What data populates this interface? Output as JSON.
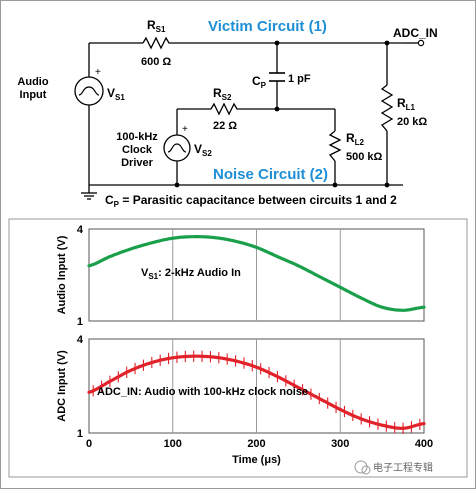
{
  "circuit": {
    "title_victim": "Victim Circuit (1)",
    "title_noise": "Noise Circuit (2)",
    "adc_label": "ADC_IN",
    "rs1": {
      "name": "R",
      "sub": "S1",
      "value": "600 Ω"
    },
    "rs2": {
      "name": "R",
      "sub": "S2",
      "value": "22 Ω"
    },
    "cp": {
      "name": "C",
      "sub": "P",
      "value": "1 pF"
    },
    "rl1": {
      "name": "R",
      "sub": "L1",
      "value": "20 kΩ"
    },
    "rl2": {
      "name": "R",
      "sub": "L2",
      "value": "500 kΩ"
    },
    "vs1": {
      "name": "V",
      "sub": "S1",
      "label_line1": "Audio",
      "label_line2": "Input"
    },
    "vs2": {
      "name": "V",
      "sub": "S2",
      "label_line1": "100-kHz",
      "label_line2": "Clock",
      "label_line3": "Driver"
    },
    "note_sym": "C",
    "note_sub": "P",
    "note_text": " = Parasitic capacitance between circuits 1 and 2"
  },
  "chart_data": [
    {
      "type": "line",
      "ylabel": "Audio Input (V)",
      "ylim": [
        1,
        4
      ],
      "yticks": [
        "4",
        "1"
      ],
      "xlim": [
        0,
        400
      ],
      "annotation_sym": "V",
      "annotation_sub": "S1",
      "annotation_text": ": 2-kHz Audio In",
      "series": [
        {
          "color": "#1aa04a",
          "x": [
            0,
            25,
            50,
            75,
            100,
            125,
            150,
            175,
            200,
            225,
            250,
            275,
            300,
            325,
            350,
            375,
            400
          ],
          "y": [
            2.8,
            3.1,
            3.35,
            3.55,
            3.7,
            3.75,
            3.72,
            3.6,
            3.4,
            3.1,
            2.8,
            2.45,
            2.1,
            1.75,
            1.45,
            1.35,
            1.45
          ]
        }
      ]
    },
    {
      "type": "line",
      "ylabel": "ADC Input (V)",
      "ylim": [
        1,
        4
      ],
      "yticks": [
        "4",
        "1"
      ],
      "xlim": [
        0,
        400
      ],
      "xticks": [
        "0",
        "100",
        "200",
        "300",
        "400"
      ],
      "xlabel": "Time (μs)",
      "annotation_text": "ADC_IN:  Audio with 100-kHz clock noise",
      "series": [
        {
          "color": "#e2222a",
          "x": [
            0,
            25,
            50,
            75,
            100,
            125,
            150,
            175,
            200,
            225,
            250,
            275,
            300,
            325,
            350,
            375,
            400
          ],
          "y": [
            2.3,
            2.65,
            3.0,
            3.25,
            3.4,
            3.45,
            3.42,
            3.3,
            3.1,
            2.8,
            2.45,
            2.1,
            1.75,
            1.45,
            1.25,
            1.15,
            1.3
          ],
          "noise_amplitude": 0.18
        }
      ]
    }
  ],
  "watermark": "电子工程专辑"
}
